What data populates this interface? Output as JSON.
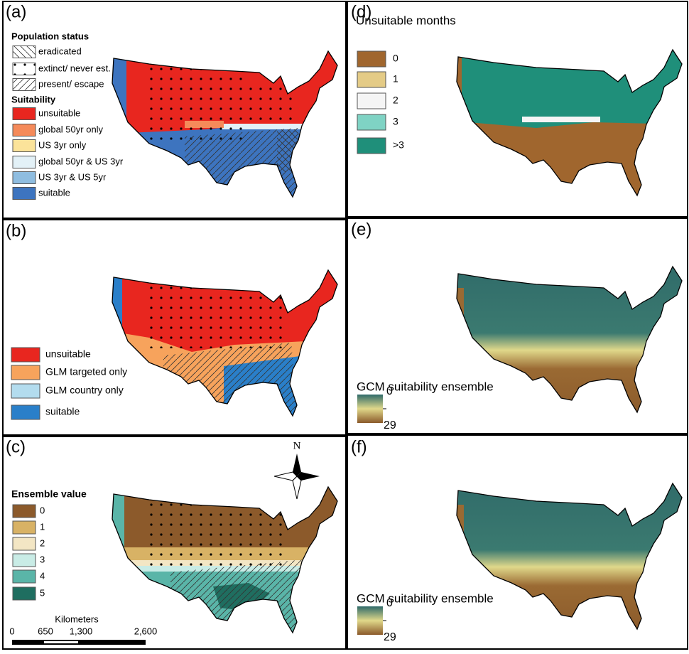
{
  "panels": [
    {
      "label": "(a)",
      "legend_groups": [
        {
          "title": "Population status",
          "items": [
            {
              "label": "eradicated"
            },
            {
              "label": "extinct/ never est."
            },
            {
              "label": "present/ escape"
            }
          ]
        },
        {
          "title": "Suitability",
          "items": [
            {
              "label": "unsuitable",
              "color": "#e8261f"
            },
            {
              "label": "global 50yr only",
              "color": "#f58a5a"
            },
            {
              "label": "US 3yr only",
              "color": "#fbe39a"
            },
            {
              "label": "global 50yr & US 3yr",
              "color": "#e3f1f7"
            },
            {
              "label": "US 3yr & US 5yr",
              "color": "#8fbde0"
            },
            {
              "label": "suitable",
              "color": "#3d74bf"
            }
          ]
        }
      ]
    },
    {
      "label": "(b)",
      "legend_groups": [
        {
          "items": [
            {
              "label": "unsuitable",
              "color": "#e8261f"
            },
            {
              "label": "GLM targeted only",
              "color": "#f7a35c"
            },
            {
              "label": "GLM country only",
              "color": "#b3dcee"
            },
            {
              "label": "suitable",
              "color": "#2a7fc9"
            }
          ]
        }
      ]
    },
    {
      "label": "(c)",
      "legend_groups": [
        {
          "title": "Ensemble value",
          "items": [
            {
              "label": "0",
              "color": "#8c5a2b"
            },
            {
              "label": "1",
              "color": "#d8b265"
            },
            {
              "label": "2",
              "color": "#f3e6c4"
            },
            {
              "label": "3",
              "color": "#c9ece6"
            },
            {
              "label": "4",
              "color": "#5ab5a8"
            },
            {
              "label": "5",
              "color": "#1f6e60"
            }
          ]
        }
      ]
    },
    {
      "label": "(d)",
      "legend_groups": [
        {
          "title": "Unsuitable months",
          "items": [
            {
              "label": "0",
              "color": "#a0662e"
            },
            {
              "label": "1",
              "color": "#e4cb86"
            },
            {
              "label": "2",
              "color": "#f5f5f5"
            },
            {
              "label": "3",
              "color": "#7fd3c4"
            },
            {
              "label": ">3",
              "color": "#1f8f7a"
            }
          ]
        }
      ]
    },
    {
      "label": "(e)",
      "gradient_legend": {
        "title": "GCM suitability ensemble",
        "min_label": "0",
        "max_label": "29"
      }
    },
    {
      "label": "(f)",
      "gradient_legend": {
        "title": "GCM suitability ensemble",
        "min_label": "0",
        "max_label": "29"
      }
    }
  ],
  "north_arrow": "N",
  "scale_bar": {
    "title": "Kilometers",
    "ticks": [
      "0",
      "650",
      "1,300",
      "2,600"
    ]
  }
}
